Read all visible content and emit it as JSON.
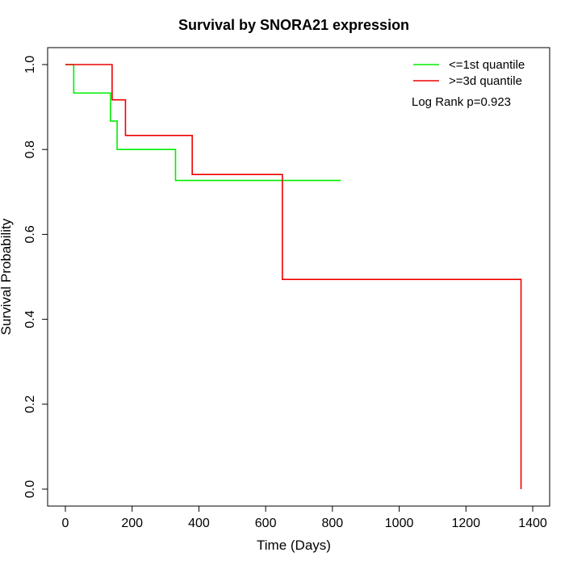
{
  "chart_data": {
    "type": "line",
    "step": true,
    "title": "Survival by SNORA21 expression",
    "xlabel": "Time (Days)",
    "ylabel": "Survival Probability",
    "xlim": [
      0,
      1400
    ],
    "ylim": [
      0,
      1
    ],
    "x_ticks": [
      "0",
      "200",
      "400",
      "600",
      "800",
      "1000",
      "1200",
      "1400"
    ],
    "y_ticks": [
      "0.0",
      "0.2",
      "0.4",
      "0.6",
      "0.8",
      "1.0"
    ],
    "grid": false,
    "legend_position": "top-right",
    "annotation": "Log Rank p=0.923",
    "series": [
      {
        "name": "<=1st quantile",
        "color": "#00ee00",
        "x": [
          0,
          25,
          135,
          155,
          330,
          825
        ],
        "y": [
          1.0,
          0.933,
          0.867,
          0.8,
          0.727,
          0.727
        ]
      },
      {
        "name": ">=3d quantile",
        "color": "#ee0000",
        "x": [
          0,
          140,
          180,
          380,
          650,
          1365,
          1365
        ],
        "y": [
          1.0,
          0.917,
          0.833,
          0.741,
          0.494,
          0.494,
          0.0
        ]
      }
    ]
  }
}
